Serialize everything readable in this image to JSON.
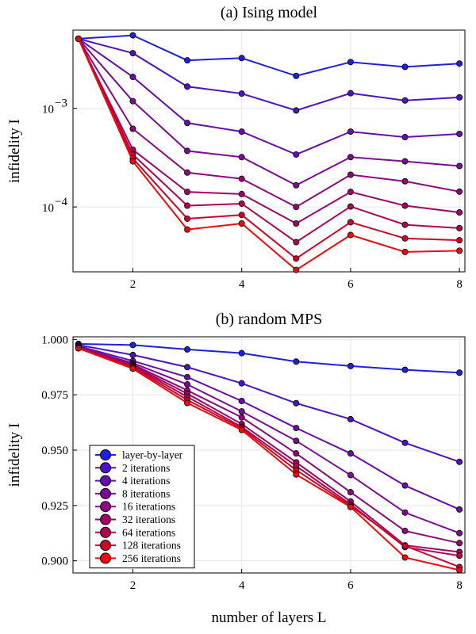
{
  "chart_data": [
    {
      "type": "line",
      "title": "(a) Ising model",
      "ylabel": "infidelity I",
      "xlabel": "",
      "yscale": "log",
      "xlim": [
        0.9,
        8.1
      ],
      "ylim": [
        2.2e-05,
        0.0062
      ],
      "xticks": [
        2,
        4,
        6,
        8
      ],
      "yticks": [
        {
          "value": 0.001,
          "base": "10",
          "exp": "−3"
        },
        {
          "value": 0.0001,
          "base": "10",
          "exp": "−4"
        }
      ],
      "x": [
        1,
        2,
        3,
        4,
        5,
        6,
        7,
        8
      ],
      "series": [
        {
          "name": "layer-by-layer",
          "color": "#1f1fde",
          "values": [
            0.00507,
            0.00549,
            0.00306,
            0.00323,
            0.00213,
            0.00294,
            0.00263,
            0.00284
          ]
        },
        {
          "name": "2 iterations",
          "color": "#4c12c4",
          "values": [
            0.00507,
            0.00362,
            0.00166,
            0.00141,
            0.00095,
            0.00142,
            0.0012,
            0.00129
          ]
        },
        {
          "name": "4 iterations",
          "color": "#660dac",
          "values": [
            0.00507,
            0.00208,
            0.00071,
            0.00058,
            0.00034,
            0.00058,
            0.00051,
            0.00055
          ]
        },
        {
          "name": "8 iterations",
          "color": "#7d0a94",
          "values": [
            0.00507,
            0.00118,
            0.00037,
            0.00032,
            0.000166,
            0.00032,
            0.00029,
            0.00026
          ]
        },
        {
          "name": "16 iterations",
          "color": "#8d087c",
          "values": [
            0.00507,
            0.00062,
            0.000223,
            0.000193,
            0.0001,
            0.000212,
            0.000182,
            0.000143
          ]
        },
        {
          "name": "32 iterations",
          "color": "#9d0664",
          "values": [
            0.00507,
            0.00038,
            0.000142,
            0.000135,
            6.8e-05,
            0.000142,
            0.000103,
            8.8e-05
          ]
        },
        {
          "name": "64 iterations",
          "color": "#b0054a",
          "values": [
            0.00507,
            0.00034,
            0.000103,
            0.000108,
            4.4e-05,
            0.000101,
            6.6e-05,
            6.1e-05
          ]
        },
        {
          "name": "128 iterations",
          "color": "#cc042a",
          "values": [
            0.00507,
            0.00031,
            7.6e-05,
            8.3e-05,
            3e-05,
            7e-05,
            4.8e-05,
            4.6e-05
          ]
        },
        {
          "name": "256 iterations",
          "color": "#ee0a0a",
          "values": [
            0.00507,
            0.00029,
            5.9e-05,
            6.8e-05,
            2.3e-05,
            5.2e-05,
            3.5e-05,
            3.6e-05
          ]
        }
      ]
    },
    {
      "type": "line",
      "title": "(b) random MPS",
      "ylabel": "infidelity I",
      "xlabel": "number of layers L",
      "yscale": "linear",
      "xlim": [
        0.9,
        8.1
      ],
      "ylim": [
        0.8945,
        1.0012
      ],
      "xticks": [
        2,
        4,
        6,
        8
      ],
      "yticks": [
        {
          "value": 0.9,
          "label": "0.900"
        },
        {
          "value": 0.925,
          "label": "0.925"
        },
        {
          "value": 0.95,
          "label": "0.950"
        },
        {
          "value": 0.975,
          "label": "0.975"
        },
        {
          "value": 1.0,
          "label": "1.000"
        }
      ],
      "legend": "bottom-left",
      "x": [
        1,
        2,
        3,
        4,
        5,
        6,
        7,
        8
      ],
      "series": [
        {
          "name": "layer-by-layer",
          "color": "#1f1fde",
          "values": [
            0.998,
            0.9975,
            0.9955,
            0.9938,
            0.99,
            0.988,
            0.9863,
            0.985
          ]
        },
        {
          "name": "2 iterations",
          "color": "#4c12c4",
          "values": [
            0.9975,
            0.993,
            0.9875,
            0.9802,
            0.9712,
            0.964,
            0.9533,
            0.9447
          ]
        },
        {
          "name": "4 iterations",
          "color": "#660dac",
          "values": [
            0.997,
            0.9903,
            0.983,
            0.9722,
            0.96,
            0.9485,
            0.934,
            0.9232
          ]
        },
        {
          "name": "8 iterations",
          "color": "#7d0a94",
          "values": [
            0.9965,
            0.9893,
            0.9797,
            0.9675,
            0.9542,
            0.9387,
            0.9218,
            0.9125
          ]
        },
        {
          "name": "16 iterations",
          "color": "#8d087c",
          "values": [
            0.9963,
            0.9887,
            0.977,
            0.9648,
            0.9485,
            0.931,
            0.9135,
            0.908
          ]
        },
        {
          "name": "32 iterations",
          "color": "#9d0664",
          "values": [
            0.9962,
            0.9882,
            0.9755,
            0.9618,
            0.9445,
            0.9268,
            0.907,
            0.904
          ]
        },
        {
          "name": "64 iterations",
          "color": "#b0054a",
          "values": [
            0.9961,
            0.9878,
            0.9741,
            0.9605,
            0.9428,
            0.9255,
            0.9062,
            0.9023
          ]
        },
        {
          "name": "128 iterations",
          "color": "#cc042a",
          "values": [
            0.996,
            0.9873,
            0.9727,
            0.9598,
            0.941,
            0.9248,
            0.9068,
            0.8972
          ]
        },
        {
          "name": "256 iterations",
          "color": "#ee0a0a",
          "values": [
            0.996,
            0.9868,
            0.9713,
            0.9591,
            0.939,
            0.9243,
            0.9015,
            0.8958
          ]
        }
      ]
    }
  ]
}
